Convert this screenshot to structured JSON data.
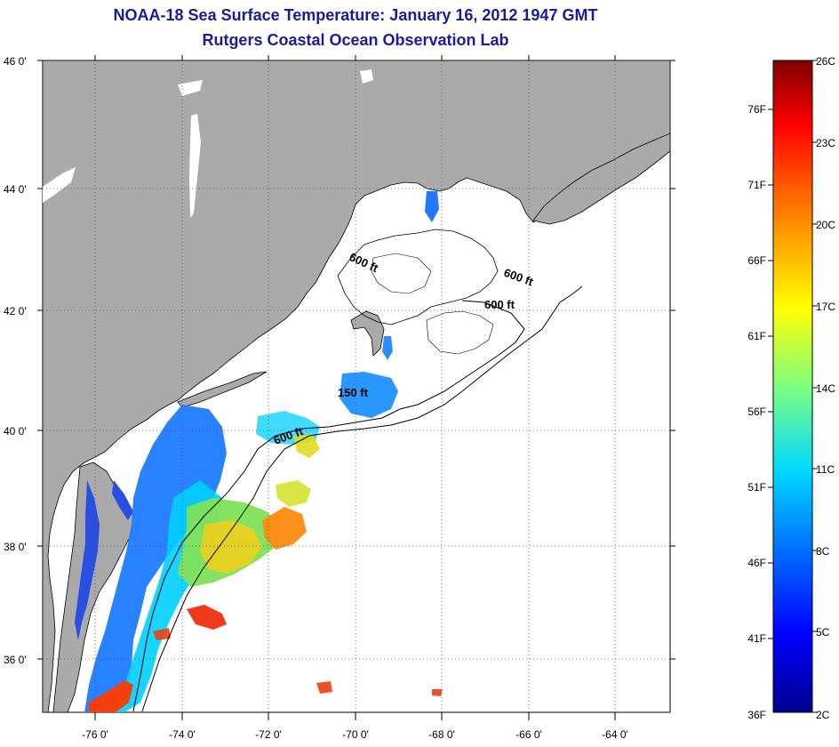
{
  "header": {
    "title": "NOAA-18 Sea Surface Temperature:  January 16, 2012 1947 GMT",
    "subtitle": "Rutgers Coastal Ocean Observation Lab"
  },
  "axes": {
    "lat_labels": [
      "46 0'",
      "44 0'",
      "42 0'",
      "40 0'",
      "38 0'",
      "36 0'"
    ],
    "lon_labels": [
      "-76 0'",
      "-74 0'",
      "-72 0'",
      "-70 0'",
      "-68 0'",
      "-66 0'",
      "-64 0'"
    ],
    "lat_range": [
      35,
      46
    ],
    "lon_range": [
      -77,
      -62.5
    ]
  },
  "contours": [
    {
      "label": "600 ft"
    },
    {
      "label": "600 ft"
    },
    {
      "label": "600 ft"
    },
    {
      "label": "150 ft"
    },
    {
      "label": "600 ft"
    }
  ],
  "colorbar": {
    "fahrenheit_labels": [
      "76F",
      "71F",
      "66F",
      "61F",
      "56F",
      "51F",
      "46F",
      "41F",
      "36F"
    ],
    "celsius_labels": [
      "26C",
      "23C",
      "20C",
      "17C",
      "14C",
      "11C",
      "8C",
      "5C",
      "2C"
    ],
    "range_c": [
      2,
      26
    ]
  },
  "colors": {
    "land": "#aaaaaa",
    "ocean": "#ffffff",
    "title": "#1a1aa0"
  }
}
